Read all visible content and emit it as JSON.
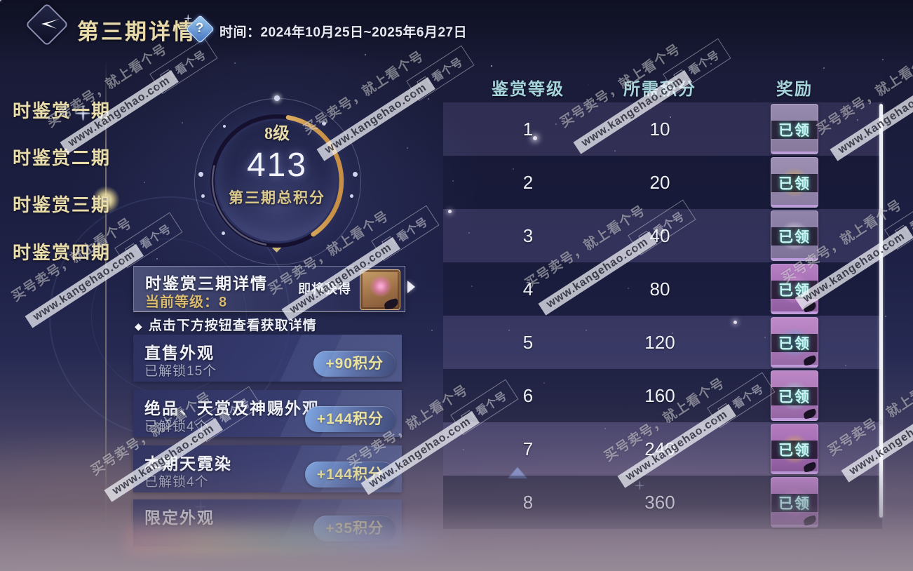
{
  "header": {
    "title": "第三期详情",
    "help_icon": "?",
    "time_label": "时间：",
    "time_value": "2024年10月25日~2025年6月27日"
  },
  "sidebar": {
    "items": [
      {
        "label": "时鉴赏一期",
        "selected": false
      },
      {
        "label": "时鉴赏二期",
        "selected": false
      },
      {
        "label": "时鉴赏三期",
        "selected": true
      },
      {
        "label": "时鉴赏四期",
        "selected": false
      }
    ]
  },
  "score_circle": {
    "level": "8级",
    "score": "413",
    "caption": "第三期总积分"
  },
  "phase_card": {
    "title": "时鉴赏三期详情",
    "current_level_label": "当前等级：8",
    "upcoming_label": "即将获得"
  },
  "tip": {
    "bullet": "◆",
    "text": "点击下方按钮查看获取详情"
  },
  "categories": [
    {
      "title": "直售外观",
      "unlocked": "已解锁15个",
      "points": "+90积分"
    },
    {
      "title": "绝品、天赏及神赐外观",
      "unlocked": "已解锁4个",
      "points": "+144积分"
    },
    {
      "title": "本期天霓染",
      "unlocked": "已解锁4个",
      "points": "+144积分"
    },
    {
      "title": "限定外观",
      "unlocked": "",
      "points": "+35积分"
    }
  ],
  "rewards_table": {
    "columns": [
      "鉴赏等级",
      "所需积分",
      "奖励"
    ],
    "rows": [
      {
        "level": "1",
        "points": "10",
        "status": "已领",
        "icon_top": "#968aae",
        "icon_bottom": "#86799c",
        "icon_accent": "transparent",
        "wing": false
      },
      {
        "level": "2",
        "points": "20",
        "status": "已领",
        "icon_top": "#9c8fb2",
        "icon_bottom": "#8a7ca2",
        "icon_accent": "#d9a94e",
        "wing": false
      },
      {
        "level": "3",
        "points": "40",
        "status": "已领",
        "icon_top": "#9084aa",
        "icon_bottom": "#7e7298",
        "icon_accent": "#eceaf2",
        "wing": false
      },
      {
        "level": "4",
        "points": "80",
        "status": "已领",
        "icon_top": "#b77fc4",
        "icon_bottom": "#8f5c9f",
        "icon_accent": "#e598d8",
        "wing": true
      },
      {
        "level": "5",
        "points": "120",
        "status": "已领",
        "icon_top": "#c08ac9",
        "icon_bottom": "#9668a6",
        "icon_accent": "#74a0d8",
        "wing": true
      },
      {
        "level": "6",
        "points": "160",
        "status": "已领",
        "icon_top": "#bd87c6",
        "icon_bottom": "#9465a3",
        "icon_accent": "#9fd8d2",
        "wing": true
      },
      {
        "level": "7",
        "points": "240",
        "status": "已领",
        "icon_top": "#b57cc0",
        "icon_bottom": "#8a589b",
        "icon_accent": "#edba4e",
        "wing": true
      },
      {
        "level": "8",
        "points": "360",
        "status": "已领",
        "icon_top": "#bb84c6",
        "icon_bottom": "#9162a1",
        "icon_accent": "#d490d0",
        "wing": true
      }
    ]
  },
  "watermark": {
    "line1": "买号卖号，就上看个号",
    "line2": "www.kangehao.com",
    "badge": "看个号"
  },
  "colors": {
    "accent_gold": "#e7d9a9",
    "table_header_teal": "#a5d4dd",
    "pill_text_yellow": "#f3e793",
    "pill_blue": "#7fa8e2",
    "claimed_cyan": "#cdf2f6",
    "background_navy": "#1d1f3e"
  }
}
